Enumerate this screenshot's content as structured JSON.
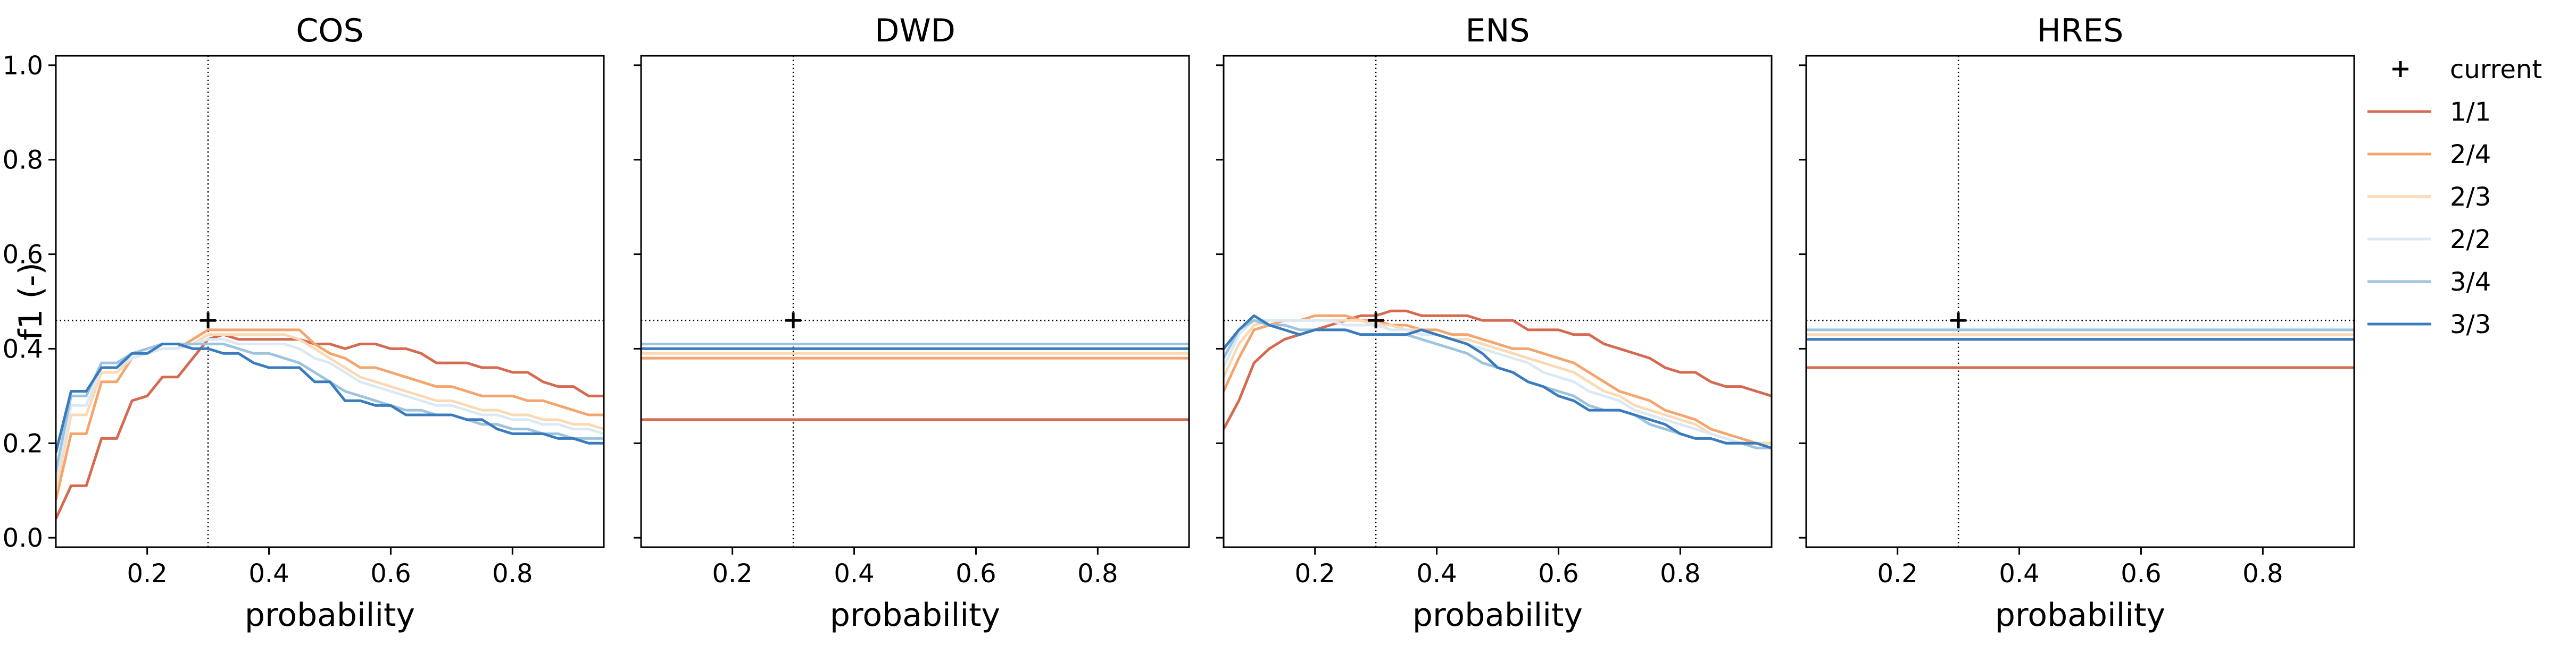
{
  "chart_data": {
    "type": "line",
    "ylabel": "f1 (-)",
    "xlabel": "probability",
    "xlim": [
      0.05,
      0.95
    ],
    "ylim": [
      -0.02,
      1.02
    ],
    "xticks": [
      0.2,
      0.4,
      0.6,
      0.8
    ],
    "xtick_labels": [
      "0.2",
      "0.4",
      "0.6",
      "0.8"
    ],
    "yticks": [
      0.0,
      0.2,
      0.4,
      0.6,
      0.8,
      1.0
    ],
    "ytick_labels": [
      "0.0",
      "0.2",
      "0.4",
      "0.6",
      "0.8",
      "1.0"
    ],
    "grid": false,
    "legend_position": "outside right",
    "reference_lines": {
      "x": 0.3,
      "y": 0.46
    },
    "current_marker": {
      "label": "current",
      "x": 0.3,
      "y": 0.46
    },
    "series_styles": [
      {
        "name": "1/1",
        "color": "#d6694f"
      },
      {
        "name": "2/4",
        "color": "#f4a56e"
      },
      {
        "name": "2/3",
        "color": "#fbd9b5"
      },
      {
        "name": "2/2",
        "color": "#dbe9f4"
      },
      {
        "name": "3/4",
        "color": "#9cc4df"
      },
      {
        "name": "3/3",
        "color": "#3a7bbd"
      }
    ],
    "panels": [
      {
        "title": "COS",
        "x": [
          0.05,
          0.075,
          0.1,
          0.125,
          0.15,
          0.175,
          0.2,
          0.225,
          0.25,
          0.275,
          0.3,
          0.325,
          0.35,
          0.375,
          0.4,
          0.425,
          0.45,
          0.475,
          0.5,
          0.525,
          0.55,
          0.575,
          0.6,
          0.625,
          0.65,
          0.675,
          0.7,
          0.725,
          0.75,
          0.775,
          0.8,
          0.825,
          0.85,
          0.875,
          0.9,
          0.925,
          0.95
        ],
        "series": [
          {
            "name": "1/1",
            "values": [
              0.04,
              0.11,
              0.11,
              0.21,
              0.21,
              0.29,
              0.3,
              0.34,
              0.34,
              0.38,
              0.42,
              0.43,
              0.42,
              0.42,
              0.42,
              0.42,
              0.42,
              0.41,
              0.41,
              0.4,
              0.41,
              0.41,
              0.4,
              0.4,
              0.39,
              0.37,
              0.37,
              0.37,
              0.36,
              0.36,
              0.35,
              0.35,
              0.33,
              0.32,
              0.32,
              0.3,
              0.3
            ]
          },
          {
            "name": "2/4",
            "values": [
              0.08,
              0.22,
              0.22,
              0.33,
              0.33,
              0.38,
              0.39,
              0.4,
              0.4,
              0.42,
              0.44,
              0.44,
              0.44,
              0.44,
              0.44,
              0.44,
              0.44,
              0.41,
              0.39,
              0.38,
              0.36,
              0.36,
              0.35,
              0.34,
              0.33,
              0.32,
              0.32,
              0.31,
              0.3,
              0.3,
              0.3,
              0.29,
              0.29,
              0.28,
              0.27,
              0.26,
              0.26
            ]
          },
          {
            "name": "2/3",
            "values": [
              0.1,
              0.26,
              0.26,
              0.35,
              0.35,
              0.38,
              0.39,
              0.4,
              0.4,
              0.41,
              0.43,
              0.43,
              0.43,
              0.43,
              0.43,
              0.43,
              0.42,
              0.4,
              0.38,
              0.36,
              0.34,
              0.33,
              0.32,
              0.31,
              0.3,
              0.29,
              0.29,
              0.28,
              0.27,
              0.27,
              0.26,
              0.26,
              0.25,
              0.25,
              0.24,
              0.24,
              0.23
            ]
          },
          {
            "name": "2/2",
            "values": [
              0.12,
              0.28,
              0.28,
              0.36,
              0.36,
              0.38,
              0.39,
              0.4,
              0.4,
              0.41,
              0.42,
              0.42,
              0.41,
              0.41,
              0.41,
              0.41,
              0.4,
              0.38,
              0.37,
              0.35,
              0.33,
              0.32,
              0.31,
              0.3,
              0.29,
              0.28,
              0.28,
              0.27,
              0.26,
              0.26,
              0.25,
              0.25,
              0.24,
              0.24,
              0.23,
              0.23,
              0.22
            ]
          },
          {
            "name": "3/4",
            "values": [
              0.14,
              0.3,
              0.3,
              0.37,
              0.37,
              0.39,
              0.4,
              0.41,
              0.41,
              0.41,
              0.41,
              0.41,
              0.4,
              0.39,
              0.39,
              0.38,
              0.37,
              0.35,
              0.33,
              0.31,
              0.3,
              0.29,
              0.28,
              0.27,
              0.27,
              0.26,
              0.26,
              0.25,
              0.24,
              0.24,
              0.23,
              0.23,
              0.22,
              0.22,
              0.21,
              0.21,
              0.21
            ]
          },
          {
            "name": "3/3",
            "values": [
              0.18,
              0.31,
              0.31,
              0.36,
              0.36,
              0.39,
              0.39,
              0.41,
              0.41,
              0.4,
              0.4,
              0.39,
              0.39,
              0.37,
              0.36,
              0.36,
              0.36,
              0.33,
              0.33,
              0.29,
              0.29,
              0.28,
              0.28,
              0.26,
              0.26,
              0.26,
              0.26,
              0.25,
              0.25,
              0.23,
              0.22,
              0.22,
              0.22,
              0.21,
              0.21,
              0.2,
              0.2
            ]
          }
        ]
      },
      {
        "title": "DWD",
        "x": [
          0.05,
          0.95
        ],
        "series": [
          {
            "name": "1/1",
            "values": [
              0.25,
              0.25
            ]
          },
          {
            "name": "2/4",
            "values": [
              0.38,
              0.38
            ]
          },
          {
            "name": "2/3",
            "values": [
              0.39,
              0.39
            ]
          },
          {
            "name": "2/2",
            "values": [
              0.4,
              0.4
            ]
          },
          {
            "name": "3/4",
            "values": [
              0.41,
              0.41
            ]
          },
          {
            "name": "3/3",
            "values": [
              0.4,
              0.4
            ]
          }
        ]
      },
      {
        "title": "ENS",
        "x": [
          0.05,
          0.075,
          0.1,
          0.125,
          0.15,
          0.175,
          0.2,
          0.225,
          0.25,
          0.275,
          0.3,
          0.325,
          0.35,
          0.375,
          0.4,
          0.425,
          0.45,
          0.475,
          0.5,
          0.525,
          0.55,
          0.575,
          0.6,
          0.625,
          0.65,
          0.675,
          0.7,
          0.725,
          0.75,
          0.775,
          0.8,
          0.825,
          0.85,
          0.875,
          0.9,
          0.925,
          0.95
        ],
        "series": [
          {
            "name": "1/1",
            "values": [
              0.23,
              0.29,
              0.37,
              0.4,
              0.42,
              0.43,
              0.44,
              0.45,
              0.46,
              0.47,
              0.47,
              0.48,
              0.48,
              0.47,
              0.47,
              0.47,
              0.47,
              0.46,
              0.46,
              0.46,
              0.44,
              0.44,
              0.44,
              0.43,
              0.43,
              0.41,
              0.4,
              0.39,
              0.38,
              0.36,
              0.35,
              0.35,
              0.33,
              0.32,
              0.32,
              0.31,
              0.3
            ]
          },
          {
            "name": "2/4",
            "values": [
              0.31,
              0.38,
              0.44,
              0.45,
              0.46,
              0.46,
              0.47,
              0.47,
              0.47,
              0.46,
              0.46,
              0.45,
              0.45,
              0.44,
              0.44,
              0.43,
              0.43,
              0.42,
              0.41,
              0.4,
              0.4,
              0.39,
              0.38,
              0.37,
              0.35,
              0.33,
              0.31,
              0.3,
              0.29,
              0.27,
              0.26,
              0.25,
              0.23,
              0.22,
              0.21,
              0.2,
              0.2
            ]
          },
          {
            "name": "2/3",
            "values": [
              0.34,
              0.41,
              0.45,
              0.46,
              0.46,
              0.46,
              0.46,
              0.46,
              0.46,
              0.46,
              0.45,
              0.45,
              0.44,
              0.44,
              0.43,
              0.42,
              0.42,
              0.41,
              0.4,
              0.39,
              0.38,
              0.37,
              0.36,
              0.35,
              0.33,
              0.31,
              0.3,
              0.28,
              0.27,
              0.26,
              0.25,
              0.24,
              0.22,
              0.21,
              0.2,
              0.2,
              0.2
            ]
          },
          {
            "name": "2/2",
            "values": [
              0.36,
              0.43,
              0.46,
              0.46,
              0.46,
              0.46,
              0.46,
              0.46,
              0.45,
              0.45,
              0.45,
              0.44,
              0.44,
              0.43,
              0.43,
              0.42,
              0.41,
              0.4,
              0.39,
              0.38,
              0.37,
              0.35,
              0.34,
              0.33,
              0.31,
              0.3,
              0.29,
              0.27,
              0.26,
              0.25,
              0.24,
              0.23,
              0.22,
              0.21,
              0.2,
              0.2,
              0.19
            ]
          },
          {
            "name": "3/4",
            "values": [
              0.38,
              0.44,
              0.46,
              0.45,
              0.45,
              0.44,
              0.44,
              0.44,
              0.44,
              0.43,
              0.43,
              0.43,
              0.43,
              0.42,
              0.41,
              0.4,
              0.39,
              0.37,
              0.36,
              0.35,
              0.33,
              0.32,
              0.31,
              0.3,
              0.28,
              0.27,
              0.27,
              0.26,
              0.24,
              0.23,
              0.22,
              0.21,
              0.21,
              0.2,
              0.2,
              0.19,
              0.19
            ]
          },
          {
            "name": "3/3",
            "values": [
              0.4,
              0.44,
              0.47,
              0.45,
              0.44,
              0.43,
              0.44,
              0.44,
              0.44,
              0.43,
              0.43,
              0.43,
              0.43,
              0.44,
              0.43,
              0.42,
              0.41,
              0.39,
              0.36,
              0.35,
              0.33,
              0.32,
              0.3,
              0.29,
              0.27,
              0.27,
              0.27,
              0.26,
              0.25,
              0.24,
              0.22,
              0.21,
              0.21,
              0.2,
              0.2,
              0.2,
              0.19
            ]
          }
        ]
      },
      {
        "title": "HRES",
        "x": [
          0.05,
          0.95
        ],
        "series": [
          {
            "name": "1/1",
            "values": [
              0.36,
              0.36
            ]
          },
          {
            "name": "2/4",
            "values": [
              0.42,
              0.42
            ]
          },
          {
            "name": "2/3",
            "values": [
              0.43,
              0.43
            ]
          },
          {
            "name": "2/2",
            "values": [
              0.44,
              0.44
            ]
          },
          {
            "name": "3/4",
            "values": [
              0.44,
              0.44
            ]
          },
          {
            "name": "3/3",
            "values": [
              0.42,
              0.42
            ]
          }
        ]
      }
    ]
  }
}
